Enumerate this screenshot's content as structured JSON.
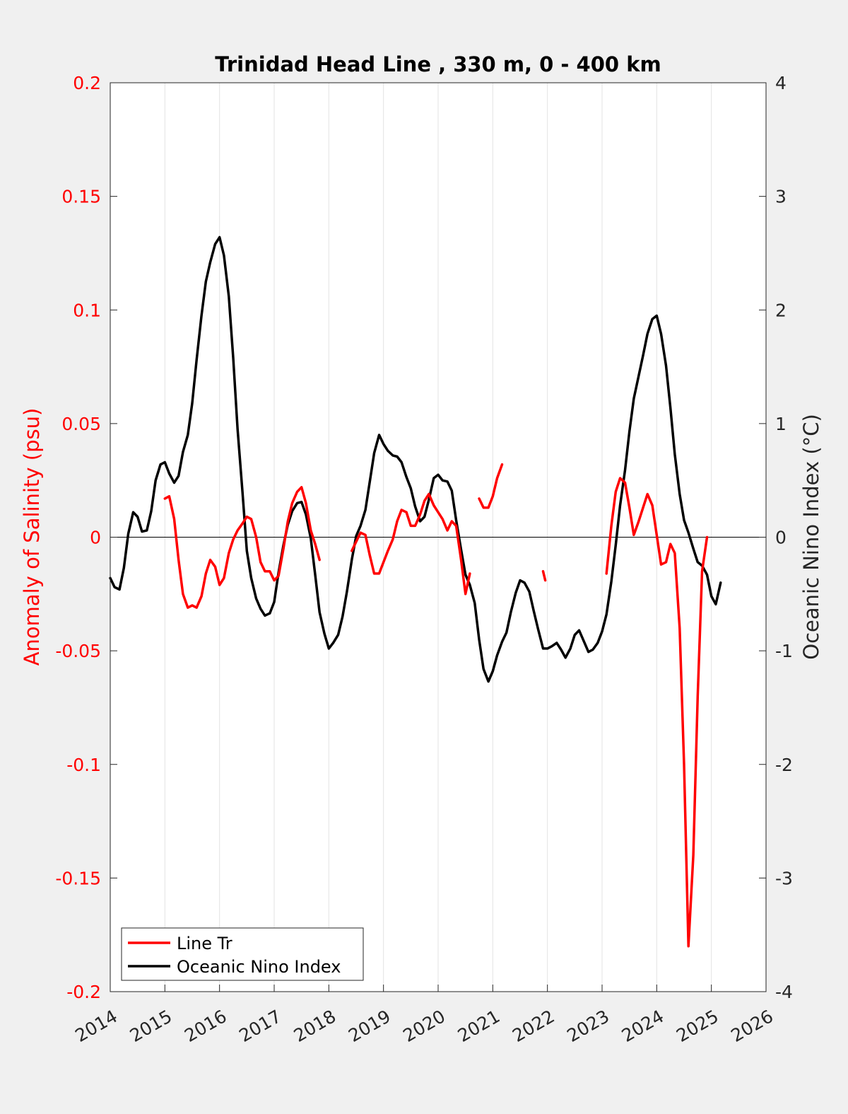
{
  "chart_data": {
    "type": "line",
    "title": "Trinidad Head Line , 330 m, 0 - 400 km",
    "ylabel_left": "Anomaly of Salinity (psu)",
    "ylabel_right": "Oceanic Nino Index (°C)",
    "xlim": [
      2014,
      2026
    ],
    "ylim_left": [
      -0.2,
      0.2
    ],
    "ylim_right": [
      -4,
      4
    ],
    "x_ticks": [
      "2014",
      "2015",
      "2016",
      "2017",
      "2018",
      "2019",
      "2020",
      "2021",
      "2022",
      "2023",
      "2024",
      "2025",
      "2026"
    ],
    "y_left_ticks": [
      "0.2",
      "0.15",
      "0.1",
      "0.05",
      "0",
      "-0.05",
      "-0.1",
      "-0.15",
      "-0.2"
    ],
    "y_right_ticks": [
      "4",
      "3",
      "2",
      "1",
      "0",
      "-1",
      "-2",
      "-3",
      "-4"
    ],
    "grid_x": true,
    "colors": {
      "salinity": "#ff0000",
      "oni": "#000000",
      "zero_line": "#000000"
    },
    "legend": {
      "position": "bottom-left",
      "entries": [
        "Line Tr",
        "Oceanic Nino Index"
      ]
    },
    "series": [
      {
        "name": "Line Tr",
        "axis": "left",
        "segments": [
          [
            [
              2015.0,
              0.017
            ],
            [
              2015.08,
              0.018
            ],
            [
              2015.17,
              0.008
            ],
            [
              2015.25,
              -0.01
            ],
            [
              2015.33,
              -0.025
            ],
            [
              2015.42,
              -0.031
            ],
            [
              2015.5,
              -0.03
            ],
            [
              2015.58,
              -0.031
            ],
            [
              2015.67,
              -0.026
            ],
            [
              2015.75,
              -0.016
            ],
            [
              2015.83,
              -0.01
            ],
            [
              2015.92,
              -0.013
            ],
            [
              2016.0,
              -0.021
            ],
            [
              2016.08,
              -0.018
            ],
            [
              2016.17,
              -0.007
            ],
            [
              2016.25,
              -0.001
            ],
            [
              2016.33,
              0.003
            ],
            [
              2016.42,
              0.006
            ],
            [
              2016.5,
              0.009
            ],
            [
              2016.58,
              0.008
            ],
            [
              2016.67,
              0.0
            ],
            [
              2016.75,
              -0.011
            ],
            [
              2016.83,
              -0.015
            ],
            [
              2016.92,
              -0.015
            ],
            [
              2017.0,
              -0.019
            ],
            [
              2017.08,
              -0.017
            ],
            [
              2017.17,
              -0.005
            ],
            [
              2017.25,
              0.007
            ],
            [
              2017.33,
              0.015
            ],
            [
              2017.42,
              0.02
            ],
            [
              2017.5,
              0.022
            ],
            [
              2017.58,
              0.015
            ],
            [
              2017.67,
              0.003
            ],
            [
              2017.75,
              -0.003
            ],
            [
              2017.83,
              -0.01
            ]
          ],
          [
            [
              2018.42,
              -0.006
            ],
            [
              2018.5,
              -0.002
            ],
            [
              2018.58,
              0.002
            ],
            [
              2018.67,
              0.001
            ],
            [
              2018.75,
              -0.008
            ],
            [
              2018.83,
              -0.016
            ],
            [
              2018.92,
              -0.016
            ],
            [
              2019.0,
              -0.011
            ],
            [
              2019.08,
              -0.006
            ],
            [
              2019.17,
              -0.001
            ],
            [
              2019.25,
              0.007
            ],
            [
              2019.33,
              0.012
            ],
            [
              2019.42,
              0.011
            ],
            [
              2019.5,
              0.005
            ],
            [
              2019.58,
              0.005
            ],
            [
              2019.67,
              0.01
            ],
            [
              2019.75,
              0.016
            ],
            [
              2019.83,
              0.019
            ],
            [
              2019.92,
              0.014
            ],
            [
              2020.0,
              0.011
            ],
            [
              2020.08,
              0.008
            ],
            [
              2020.17,
              0.003
            ],
            [
              2020.25,
              0.007
            ],
            [
              2020.33,
              0.005
            ],
            [
              2020.42,
              -0.01
            ],
            [
              2020.5,
              -0.025
            ],
            [
              2020.58,
              -0.016
            ]
          ],
          [
            [
              2020.75,
              0.017
            ],
            [
              2020.83,
              0.013
            ],
            [
              2020.92,
              0.013
            ],
            [
              2021.0,
              0.018
            ],
            [
              2021.08,
              0.026
            ],
            [
              2021.17,
              0.032
            ]
          ],
          [
            [
              2021.92,
              -0.015
            ],
            [
              2021.96,
              -0.019
            ]
          ],
          [
            [
              2023.08,
              -0.016
            ],
            [
              2023.17,
              0.005
            ],
            [
              2023.25,
              0.02
            ],
            [
              2023.33,
              0.026
            ],
            [
              2023.42,
              0.024
            ],
            [
              2023.5,
              0.013
            ],
            [
              2023.58,
              0.001
            ],
            [
              2023.67,
              0.007
            ],
            [
              2023.75,
              0.013
            ],
            [
              2023.83,
              0.019
            ],
            [
              2023.92,
              0.014
            ],
            [
              2024.0,
              0.001
            ],
            [
              2024.08,
              -0.012
            ],
            [
              2024.17,
              -0.011
            ],
            [
              2024.25,
              -0.003
            ],
            [
              2024.33,
              -0.007
            ],
            [
              2024.42,
              -0.04
            ],
            [
              2024.5,
              -0.1
            ],
            [
              2024.58,
              -0.18
            ],
            [
              2024.67,
              -0.14
            ],
            [
              2024.75,
              -0.07
            ],
            [
              2024.83,
              -0.015
            ],
            [
              2024.92,
              0.0
            ]
          ]
        ]
      },
      {
        "name": "Oceanic Nino Index",
        "axis": "right",
        "points": [
          [
            2014.0,
            -0.36
          ],
          [
            2014.08,
            -0.44
          ],
          [
            2014.17,
            -0.46
          ],
          [
            2014.25,
            -0.27
          ],
          [
            2014.33,
            0.03
          ],
          [
            2014.42,
            0.22
          ],
          [
            2014.5,
            0.18
          ],
          [
            2014.58,
            0.05
          ],
          [
            2014.67,
            0.06
          ],
          [
            2014.75,
            0.23
          ],
          [
            2014.83,
            0.5
          ],
          [
            2014.92,
            0.64
          ],
          [
            2015.0,
            0.66
          ],
          [
            2015.08,
            0.56
          ],
          [
            2015.17,
            0.48
          ],
          [
            2015.25,
            0.54
          ],
          [
            2015.33,
            0.75
          ],
          [
            2015.42,
            0.9
          ],
          [
            2015.5,
            1.18
          ],
          [
            2015.58,
            1.56
          ],
          [
            2015.67,
            1.95
          ],
          [
            2015.75,
            2.25
          ],
          [
            2015.83,
            2.42
          ],
          [
            2015.92,
            2.58
          ],
          [
            2016.0,
            2.64
          ],
          [
            2016.08,
            2.48
          ],
          [
            2016.17,
            2.12
          ],
          [
            2016.25,
            1.58
          ],
          [
            2016.33,
            0.95
          ],
          [
            2016.42,
            0.4
          ],
          [
            2016.5,
            -0.12
          ],
          [
            2016.58,
            -0.36
          ],
          [
            2016.67,
            -0.54
          ],
          [
            2016.75,
            -0.63
          ],
          [
            2016.83,
            -0.69
          ],
          [
            2016.92,
            -0.67
          ],
          [
            2017.0,
            -0.57
          ],
          [
            2017.08,
            -0.31
          ],
          [
            2017.17,
            -0.07
          ],
          [
            2017.25,
            0.11
          ],
          [
            2017.33,
            0.23
          ],
          [
            2017.42,
            0.3
          ],
          [
            2017.5,
            0.31
          ],
          [
            2017.58,
            0.2
          ],
          [
            2017.67,
            -0.01
          ],
          [
            2017.75,
            -0.33
          ],
          [
            2017.83,
            -0.66
          ],
          [
            2017.92,
            -0.85
          ],
          [
            2018.0,
            -0.98
          ],
          [
            2018.08,
            -0.93
          ],
          [
            2018.17,
            -0.86
          ],
          [
            2018.25,
            -0.7
          ],
          [
            2018.33,
            -0.48
          ],
          [
            2018.42,
            -0.2
          ],
          [
            2018.5,
            0.01
          ],
          [
            2018.58,
            0.1
          ],
          [
            2018.67,
            0.24
          ],
          [
            2018.75,
            0.49
          ],
          [
            2018.83,
            0.74
          ],
          [
            2018.92,
            0.9
          ],
          [
            2019.0,
            0.82
          ],
          [
            2019.08,
            0.76
          ],
          [
            2019.17,
            0.72
          ],
          [
            2019.25,
            0.71
          ],
          [
            2019.33,
            0.66
          ],
          [
            2019.42,
            0.53
          ],
          [
            2019.5,
            0.43
          ],
          [
            2019.58,
            0.27
          ],
          [
            2019.67,
            0.14
          ],
          [
            2019.75,
            0.18
          ],
          [
            2019.83,
            0.33
          ],
          [
            2019.92,
            0.52
          ],
          [
            2020.0,
            0.55
          ],
          [
            2020.08,
            0.5
          ],
          [
            2020.17,
            0.49
          ],
          [
            2020.25,
            0.41
          ],
          [
            2020.33,
            0.15
          ],
          [
            2020.42,
            -0.11
          ],
          [
            2020.5,
            -0.33
          ],
          [
            2020.58,
            -0.42
          ],
          [
            2020.67,
            -0.58
          ],
          [
            2020.75,
            -0.9
          ],
          [
            2020.83,
            -1.16
          ],
          [
            2020.92,
            -1.27
          ],
          [
            2021.0,
            -1.18
          ],
          [
            2021.08,
            -1.04
          ],
          [
            2021.17,
            -0.92
          ],
          [
            2021.25,
            -0.84
          ],
          [
            2021.33,
            -0.66
          ],
          [
            2021.42,
            -0.49
          ],
          [
            2021.5,
            -0.38
          ],
          [
            2021.58,
            -0.4
          ],
          [
            2021.67,
            -0.48
          ],
          [
            2021.75,
            -0.65
          ],
          [
            2021.83,
            -0.81
          ],
          [
            2021.92,
            -0.98
          ],
          [
            2022.0,
            -0.98
          ],
          [
            2022.08,
            -0.96
          ],
          [
            2022.17,
            -0.93
          ],
          [
            2022.25,
            -0.99
          ],
          [
            2022.33,
            -1.06
          ],
          [
            2022.42,
            -0.98
          ],
          [
            2022.5,
            -0.86
          ],
          [
            2022.58,
            -0.82
          ],
          [
            2022.67,
            -0.92
          ],
          [
            2022.75,
            -1.01
          ],
          [
            2022.83,
            -0.99
          ],
          [
            2022.92,
            -0.93
          ],
          [
            2023.0,
            -0.83
          ],
          [
            2023.08,
            -0.68
          ],
          [
            2023.17,
            -0.39
          ],
          [
            2023.25,
            -0.07
          ],
          [
            2023.33,
            0.28
          ],
          [
            2023.42,
            0.59
          ],
          [
            2023.5,
            0.93
          ],
          [
            2023.58,
            1.22
          ],
          [
            2023.67,
            1.42
          ],
          [
            2023.75,
            1.6
          ],
          [
            2023.83,
            1.79
          ],
          [
            2023.92,
            1.92
          ],
          [
            2024.0,
            1.95
          ],
          [
            2024.08,
            1.79
          ],
          [
            2024.17,
            1.51
          ],
          [
            2024.25,
            1.14
          ],
          [
            2024.33,
            0.73
          ],
          [
            2024.42,
            0.38
          ],
          [
            2024.5,
            0.15
          ],
          [
            2024.58,
            0.04
          ],
          [
            2024.67,
            -0.1
          ],
          [
            2024.75,
            -0.22
          ],
          [
            2024.83,
            -0.25
          ],
          [
            2024.92,
            -0.33
          ],
          [
            2025.0,
            -0.52
          ],
          [
            2025.08,
            -0.59
          ],
          [
            2025.17,
            -0.4
          ]
        ]
      }
    ]
  }
}
